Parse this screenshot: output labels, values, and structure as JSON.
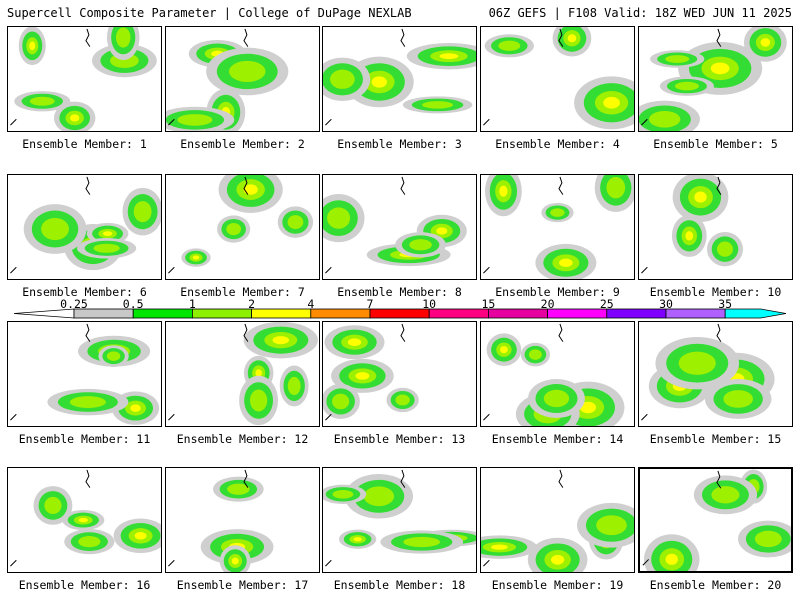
{
  "header": {
    "title": "Supercell Composite Parameter | College of DuPage NEXLAB",
    "run": "06Z GEFS | F108 Valid: 18Z WED JUN 11 2025"
  },
  "colorbar": {
    "ticks": [
      "0.25",
      "0.5",
      "1",
      "2",
      "4",
      "7",
      "10",
      "15",
      "20",
      "25",
      "30",
      "35"
    ],
    "colors": [
      "#c8c8c8",
      "#00e600",
      "#8cf000",
      "#ffff00",
      "#ff8c00",
      "#ff0000",
      "#ff0080",
      "#e600a0",
      "#ff00ff",
      "#8000ff",
      "#b060ff",
      "#00ffff"
    ]
  },
  "members": [
    {
      "label": "Ensemble Member: 1"
    },
    {
      "label": "Ensemble Member: 2"
    },
    {
      "label": "Ensemble Member: 3"
    },
    {
      "label": "Ensemble Member: 4"
    },
    {
      "label": "Ensemble Member: 5"
    },
    {
      "label": "Ensemble Member: 6"
    },
    {
      "label": "Ensemble Member: 7"
    },
    {
      "label": "Ensemble Member: 8"
    },
    {
      "label": "Ensemble Member: 9"
    },
    {
      "label": "Ensemble Member: 10"
    },
    {
      "label": "Ensemble Member: 11"
    },
    {
      "label": "Ensemble Member: 12"
    },
    {
      "label": "Ensemble Member: 13"
    },
    {
      "label": "Ensemble Member: 14"
    },
    {
      "label": "Ensemble Member: 15"
    },
    {
      "label": "Ensemble Member: 16"
    },
    {
      "label": "Ensemble Member: 17"
    },
    {
      "label": "Ensemble Member: 18"
    },
    {
      "label": "Ensemble Member: 19"
    },
    {
      "label": "Ensemble Member: 20",
      "selected": true
    }
  ]
}
